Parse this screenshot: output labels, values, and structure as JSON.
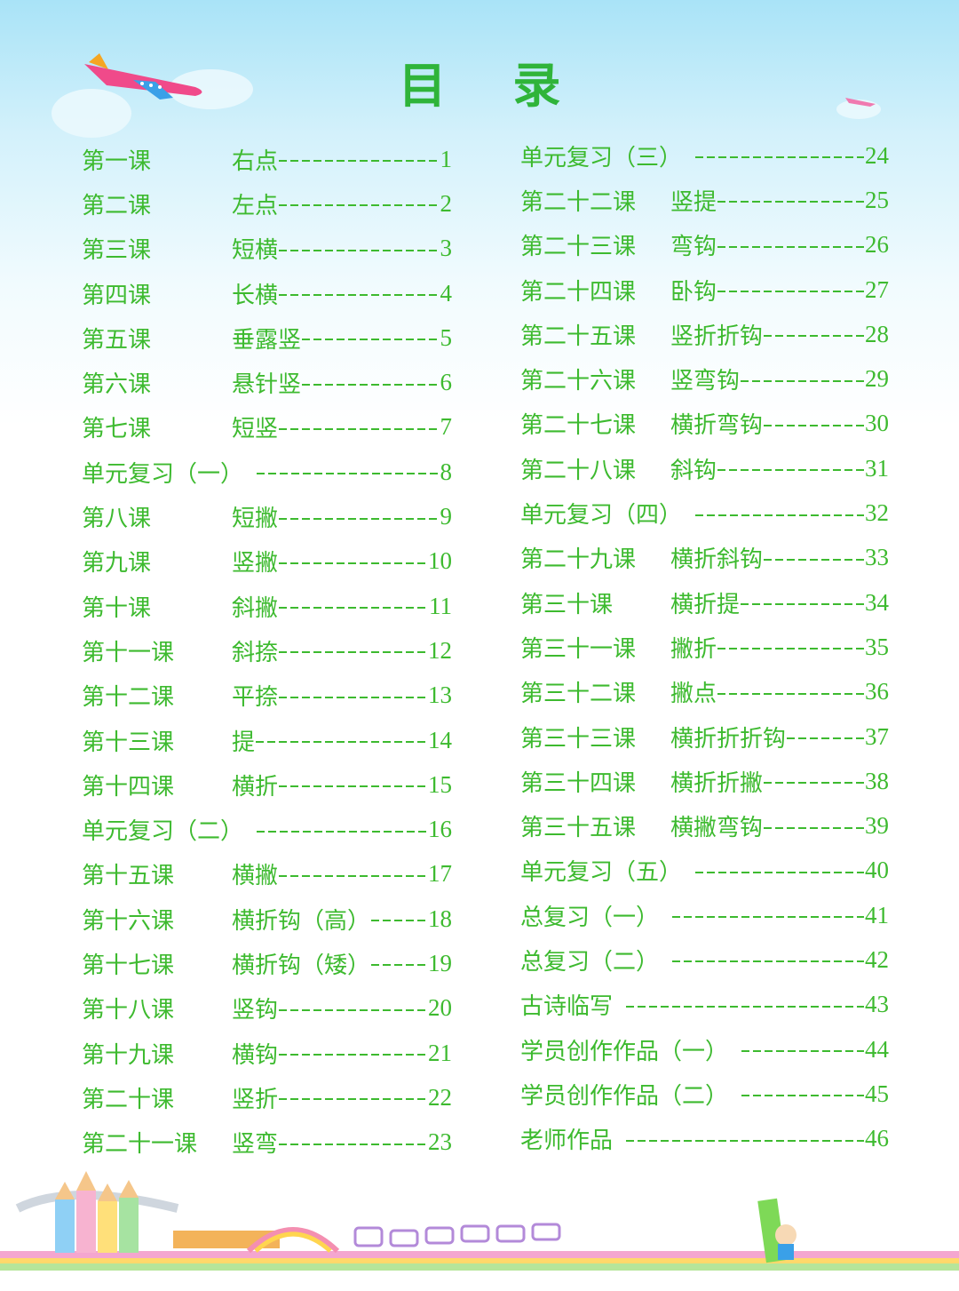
{
  "title": "目 录",
  "colors": {
    "text": "#3dba2f",
    "sky": "#a9e3f7"
  },
  "left_column": [
    {
      "lesson": "第一课",
      "stroke": "右点",
      "page": "1"
    },
    {
      "lesson": "第二课",
      "stroke": "左点",
      "page": "2"
    },
    {
      "lesson": "第三课",
      "stroke": "短横",
      "page": "3"
    },
    {
      "lesson": "第四课",
      "stroke": "长横",
      "page": "4"
    },
    {
      "lesson": "第五课",
      "stroke": "垂露竖",
      "page": "5"
    },
    {
      "lesson": "第六课",
      "stroke": "悬针竖",
      "page": "6"
    },
    {
      "lesson": "第七课",
      "stroke": "短竖",
      "page": "7"
    },
    {
      "lesson": "单元复习（一）",
      "stroke": "",
      "page": "8"
    },
    {
      "lesson": "第八课",
      "stroke": "短撇",
      "page": "9"
    },
    {
      "lesson": "第九课",
      "stroke": "竖撇",
      "page": "10"
    },
    {
      "lesson": "第十课",
      "stroke": "斜撇",
      "page": "11"
    },
    {
      "lesson": "第十一课",
      "stroke": "斜捺",
      "page": "12"
    },
    {
      "lesson": "第十二课",
      "stroke": "平捺",
      "page": "13"
    },
    {
      "lesson": "第十三课",
      "stroke": "提",
      "page": "14"
    },
    {
      "lesson": "第十四课",
      "stroke": "横折",
      "page": "15"
    },
    {
      "lesson": "单元复习（二）",
      "stroke": "",
      "page": "16"
    },
    {
      "lesson": "第十五课",
      "stroke": "横撇",
      "page": "17"
    },
    {
      "lesson": "第十六课",
      "stroke": "横折钩（高）",
      "page": "18"
    },
    {
      "lesson": "第十七课",
      "stroke": "横折钩（矮）",
      "page": "19"
    },
    {
      "lesson": "第十八课",
      "stroke": "竖钩",
      "page": "20"
    },
    {
      "lesson": "第十九课",
      "stroke": "横钩",
      "page": "21"
    },
    {
      "lesson": "第二十课",
      "stroke": "竖折",
      "page": "22"
    },
    {
      "lesson": "第二十一课",
      "stroke": "竖弯",
      "page": "23"
    }
  ],
  "right_column": [
    {
      "lesson": "单元复习（三）",
      "stroke": "",
      "page": "24"
    },
    {
      "lesson": "第二十二课",
      "stroke": "竖提",
      "page": "25"
    },
    {
      "lesson": "第二十三课",
      "stroke": "弯钩",
      "page": "26"
    },
    {
      "lesson": "第二十四课",
      "stroke": "卧钩",
      "page": "27"
    },
    {
      "lesson": "第二十五课",
      "stroke": "竖折折钩",
      "page": "28"
    },
    {
      "lesson": "第二十六课",
      "stroke": "竖弯钩",
      "page": "29"
    },
    {
      "lesson": "第二十七课",
      "stroke": "横折弯钩",
      "page": "30"
    },
    {
      "lesson": "第二十八课",
      "stroke": "斜钩",
      "page": "31"
    },
    {
      "lesson": "单元复习（四）",
      "stroke": "",
      "page": "32"
    },
    {
      "lesson": "第二十九课",
      "stroke": "横折斜钩",
      "page": "33"
    },
    {
      "lesson": "第三十课",
      "stroke": "横折提",
      "page": "34"
    },
    {
      "lesson": "第三十一课",
      "stroke": "撇折",
      "page": "35"
    },
    {
      "lesson": "第三十二课",
      "stroke": "撇点",
      "page": "36"
    },
    {
      "lesson": "第三十三课",
      "stroke": "横折折折钩",
      "page": "37"
    },
    {
      "lesson": "第三十四课",
      "stroke": "横折折撇",
      "page": "38"
    },
    {
      "lesson": "第三十五课",
      "stroke": "横撇弯钩",
      "page": "39"
    },
    {
      "lesson": "单元复习（五）",
      "stroke": "",
      "page": "40"
    },
    {
      "lesson": "总复习（一）",
      "stroke": "",
      "page": "41"
    },
    {
      "lesson": "总复习（二）",
      "stroke": "",
      "page": "42"
    },
    {
      "lesson": "古诗临写",
      "stroke": "",
      "page": "43"
    },
    {
      "lesson": "学员创作作品（一）",
      "stroke": "",
      "page": "44"
    },
    {
      "lesson": "学员创作作品（二）",
      "stroke": "",
      "page": "45"
    },
    {
      "lesson": "老师作品",
      "stroke": "",
      "page": "46"
    }
  ]
}
